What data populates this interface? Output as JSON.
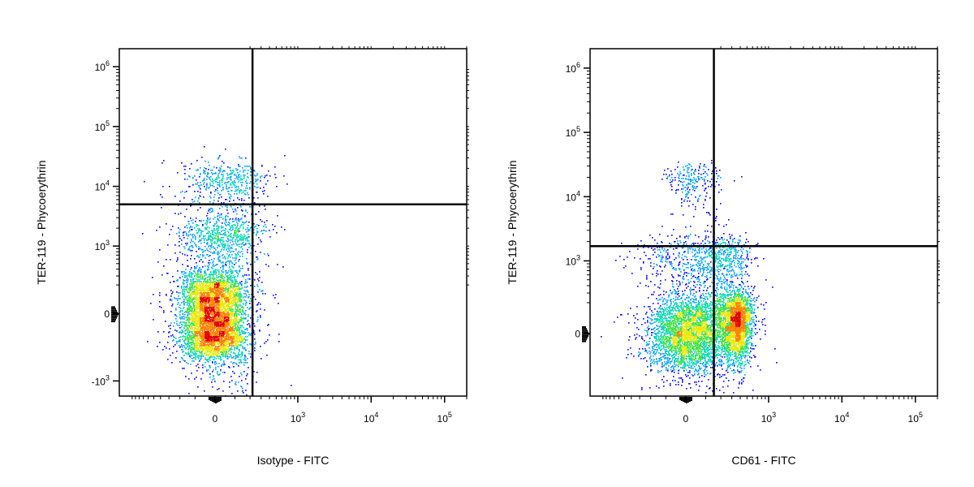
{
  "chart_data": [
    {
      "type": "scatter",
      "title": "",
      "xlabel": "Isotype - FITC",
      "ylabel": "TER-119 - Phycoerythrin",
      "x_scale": "biexponential",
      "y_scale": "biexponential",
      "xlim": [
        -1500,
        200000
      ],
      "ylim": [
        -1800,
        2000000
      ],
      "x_ticks": [
        {
          "value": 0,
          "base": "0",
          "exp": ""
        },
        {
          "value": 1000,
          "base": "10",
          "exp": "3"
        },
        {
          "value": 10000,
          "base": "10",
          "exp": "4"
        },
        {
          "value": 100000,
          "base": "10",
          "exp": "5"
        }
      ],
      "y_ticks": [
        {
          "value": -1000,
          "base": "-10",
          "exp": "3"
        },
        {
          "value": 0,
          "base": "0",
          "exp": ""
        },
        {
          "value": 1000,
          "base": "10",
          "exp": "3"
        },
        {
          "value": 10000,
          "base": "10",
          "exp": "4"
        },
        {
          "value": 100000,
          "base": "10",
          "exp": "5"
        },
        {
          "value": 1000000,
          "base": "10",
          "exp": "6"
        }
      ],
      "gates": {
        "x": 220,
        "y": 5000
      },
      "density_colors": [
        "#0000ff",
        "#00a0ff",
        "#00d8b0",
        "#40e040",
        "#e8e800",
        "#ff8000",
        "#e00000"
      ],
      "populations": [
        {
          "x_mean": -10,
          "x_sd": 80,
          "y_mean": -20,
          "y_sd": 160,
          "count": 5200
        },
        {
          "x_mean": 40,
          "x_sd": 110,
          "y_mean": 1200,
          "y_sd": 900,
          "count": 900
        },
        {
          "x_mean": 60,
          "x_sd": 120,
          "y_mean": 9000,
          "y_sd": 7000,
          "count": 600
        }
      ]
    },
    {
      "type": "scatter",
      "title": "",
      "xlabel": "CD61 - FITC",
      "ylabel": "TER-119 - Phycoerythrin",
      "x_scale": "biexponential",
      "y_scale": "biexponential",
      "xlim": [
        -1500,
        200000
      ],
      "ylim": [
        -700,
        2000000
      ],
      "x_ticks": [
        {
          "value": 0,
          "base": "0",
          "exp": ""
        },
        {
          "value": 1000,
          "base": "10",
          "exp": "3"
        },
        {
          "value": 10000,
          "base": "10",
          "exp": "4"
        },
        {
          "value": 100000,
          "base": "10",
          "exp": "5"
        }
      ],
      "y_ticks": [
        {
          "value": 0,
          "base": "0",
          "exp": ""
        },
        {
          "value": 1000,
          "base": "10",
          "exp": "3"
        },
        {
          "value": 10000,
          "base": "10",
          "exp": "4"
        },
        {
          "value": 100000,
          "base": "10",
          "exp": "5"
        },
        {
          "value": 1000000,
          "base": "10",
          "exp": "6"
        }
      ],
      "gates": {
        "x": 150,
        "y": 1700
      },
      "density_colors": [
        "#0000ff",
        "#00a0ff",
        "#00d8b0",
        "#40e040",
        "#e8e800",
        "#ff8000",
        "#e00000"
      ],
      "populations": [
        {
          "x_mean": 0,
          "x_sd": 90,
          "y_mean": 0,
          "y_sd": 110,
          "count": 3000
        },
        {
          "x_mean": 330,
          "x_sd": 110,
          "y_mean": 60,
          "y_sd": 110,
          "count": 2600
        },
        {
          "x_mean": 120,
          "x_sd": 170,
          "y_mean": 900,
          "y_sd": 700,
          "count": 1100
        },
        {
          "x_mean": 30,
          "x_sd": 70,
          "y_mean": 18000,
          "y_sd": 7000,
          "count": 250
        }
      ]
    }
  ]
}
